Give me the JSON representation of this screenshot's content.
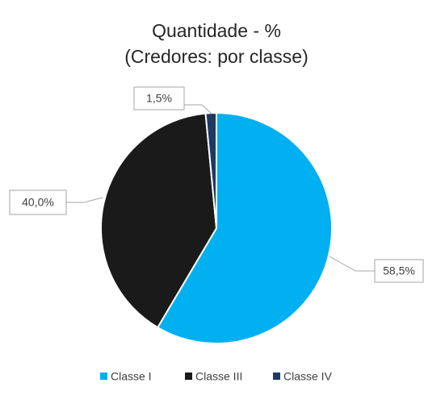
{
  "chart_data": {
    "type": "pie",
    "title": "Quantidade - %",
    "subtitle": "(Credores: por classe)",
    "categories": [
      "Classe I",
      "Classe III",
      "Classe IV"
    ],
    "values": [
      58.5,
      40.0,
      1.5
    ],
    "value_labels": [
      "58,5%",
      "40,0%",
      "1,5%"
    ],
    "colors": [
      "#00b0f0",
      "#1a1a1a",
      "#1f3864"
    ],
    "legend": "bottom"
  }
}
